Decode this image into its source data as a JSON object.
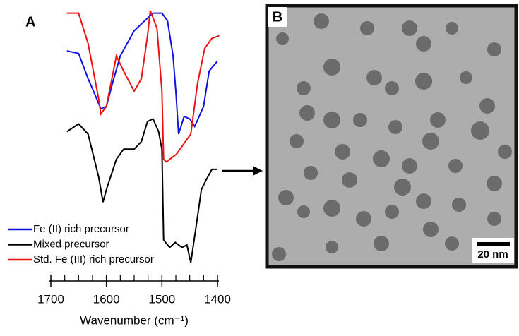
{
  "chart_data": {
    "type": "line",
    "panel_label": "A",
    "x_label": "Wavenumber (cm⁻¹)",
    "xlim": [
      1700,
      1400
    ],
    "xticks": [
      1700,
      1600,
      1500,
      1400
    ],
    "xminorticks": [
      1675,
      1650,
      1625,
      1575,
      1550,
      1525,
      1475,
      1450,
      1425
    ],
    "legend": "bottom-left",
    "series": [
      {
        "name": "Fe (II) rich precursor",
        "color": "#1010e0",
        "x": [
          1671,
          1650,
          1633,
          1625,
          1610,
          1600,
          1588,
          1575,
          1550,
          1526,
          1516,
          1500,
          1490,
          1480,
          1475,
          1470,
          1460,
          1450,
          1441,
          1425,
          1415,
          1400
        ],
        "values": [
          84,
          83,
          73,
          69,
          61,
          62,
          72,
          82,
          92,
          97,
          99,
          99,
          96,
          82,
          68,
          51,
          58,
          57,
          54,
          62,
          76,
          80
        ]
      },
      {
        "name": "Mixed precursor",
        "color": "#000000",
        "x": [
          1671,
          1650,
          1633,
          1614,
          1606,
          1600,
          1582,
          1569,
          1550,
          1537,
          1526,
          1516,
          1506,
          1500,
          1497,
          1486,
          1476,
          1464,
          1455,
          1448,
          1438,
          1429,
          1420,
          1410,
          1400
        ],
        "values": [
          52,
          55,
          51,
          34,
          24,
          29,
          41,
          45,
          45,
          48,
          56,
          57,
          52,
          45,
          9,
          6,
          8,
          6,
          7,
          0,
          15,
          29,
          33,
          37,
          37
        ]
      },
      {
        "name": "Std. Fe (III) rich precursor",
        "color": "#ee1111",
        "x": [
          1671,
          1650,
          1633,
          1614,
          1610,
          1600,
          1582,
          1569,
          1550,
          1537,
          1526,
          1521,
          1509,
          1500,
          1497,
          1492,
          1474,
          1461,
          1448,
          1436,
          1423,
          1410,
          1397
        ],
        "values": [
          99,
          99,
          87,
          65,
          59,
          62,
          82,
          76,
          68,
          73,
          90,
          100,
          93,
          68,
          41,
          40,
          43,
          47,
          51,
          71,
          85,
          89,
          90
        ]
      }
    ]
  },
  "image": {
    "panel_label": "B",
    "scale_bar": "20 nm"
  }
}
